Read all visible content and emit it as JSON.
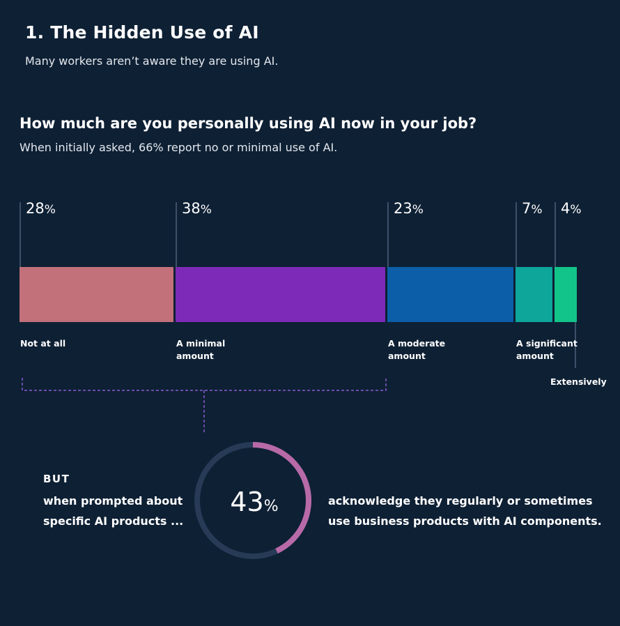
{
  "header": {
    "title": "1. The Hidden Use of AI",
    "subtitle": "Many workers aren’t aware they are using AI."
  },
  "chart_data": {
    "type": "bar",
    "title": "How much are you personally using AI now in your job?",
    "subtitle": "When initially asked, 66% report no or minimal use of AI.",
    "categories": [
      "Not at all",
      "A minimal amount",
      "A moderate amount",
      "A significant amount",
      "Extensively"
    ],
    "values": [
      28,
      38,
      23,
      7,
      4
    ],
    "value_labels": [
      "28%",
      "38%",
      "23%",
      "7%",
      "4%"
    ],
    "colors": [
      "#c2717a",
      "#7e2ab8",
      "#0c5ea8",
      "#0ea59b",
      "#13c48a"
    ],
    "unit": "%",
    "stacked": true,
    "grid": false
  },
  "callout": {
    "but_label": "BUT",
    "lead_text": "when prompted about specific AI products ...",
    "ring_value": 43,
    "ring_label": "43",
    "ring_unit": "%",
    "ring_color": "#b86aa8",
    "ring_track_color": "#273a56",
    "ack_prefix": "acknowledge they ",
    "ack_bold1": "regularly",
    "ack_mid": " or ",
    "ack_bold2": "sometimes",
    "ack_suffix": " use business products with AI components."
  }
}
